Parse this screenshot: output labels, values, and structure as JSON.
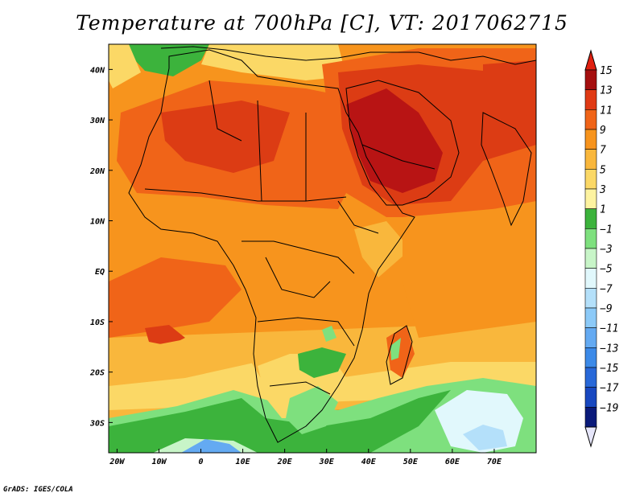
{
  "title": "Temperature at 700hPa [C], VT: 2017062715",
  "credit": "GrADS: IGES/COLA",
  "map": {
    "lon_ticks": [
      {
        "lon": -20,
        "label": "20W"
      },
      {
        "lon": -10,
        "label": "10W"
      },
      {
        "lon": 0,
        "label": "0"
      },
      {
        "lon": 10,
        "label": "10E"
      },
      {
        "lon": 20,
        "label": "20E"
      },
      {
        "lon": 30,
        "label": "30E"
      },
      {
        "lon": 40,
        "label": "40E"
      },
      {
        "lon": 50,
        "label": "50E"
      },
      {
        "lon": 60,
        "label": "60E"
      },
      {
        "lon": 70,
        "label": "70E"
      }
    ],
    "lat_ticks": [
      {
        "lat": 40,
        "label": "40N"
      },
      {
        "lat": 30,
        "label": "30N"
      },
      {
        "lat": 20,
        "label": "20N"
      },
      {
        "lat": 10,
        "label": "10N"
      },
      {
        "lat": 0,
        "label": "EQ"
      },
      {
        "lat": -10,
        "label": "10S"
      },
      {
        "lat": -20,
        "label": "20S"
      },
      {
        "lat": -30,
        "label": "30S"
      }
    ],
    "lon_range": [
      -22,
      80
    ],
    "lat_range": [
      -36,
      45
    ]
  },
  "colorbar": {
    "levels": [
      {
        "label": "15",
        "color": "#a50f0f"
      },
      {
        "label": "13",
        "color": "#e03a14"
      },
      {
        "label": "11",
        "color": "#f06418"
      },
      {
        "label": "9",
        "color": "#f7941d"
      },
      {
        "label": "7",
        "color": "#f9b73c"
      },
      {
        "label": "5",
        "color": "#fbd866"
      },
      {
        "label": "3",
        "color": "#fdf3a0"
      },
      {
        "label": "1",
        "color": "#3cb33c"
      },
      {
        "label": "−1",
        "color": "#7ee07e"
      },
      {
        "label": "−3",
        "color": "#c8f5c8"
      },
      {
        "label": "−5",
        "color": "#e1f8fc"
      },
      {
        "label": "−7",
        "color": "#b4e0fa"
      },
      {
        "label": "−9",
        "color": "#8ccaf8"
      },
      {
        "label": "−11",
        "color": "#64aaf2"
      },
      {
        "label": "−13",
        "color": "#3c8ae8"
      },
      {
        "label": "−15",
        "color": "#2868d8"
      },
      {
        "label": "−17",
        "color": "#1848c0"
      },
      {
        "label": "−19",
        "color": "#0a1a7a"
      }
    ],
    "top_color": "#e02010",
    "bottom_color": "#e6e6fa"
  },
  "field_colors": {
    "c15": "#b81414",
    "c13": "#dc3c14",
    "c11": "#f06418",
    "c9": "#f7941d",
    "c7": "#f9b73c",
    "c5": "#fbd866",
    "c3": "#fdf3a0",
    "c1": "#3cb33c",
    "cm1": "#7ee07e",
    "cm3": "#c8f5c8",
    "cm5": "#e1f8fc",
    "cm7": "#b4e0fa",
    "cm9": "#8ccaf8",
    "cm11": "#64aaf2"
  }
}
